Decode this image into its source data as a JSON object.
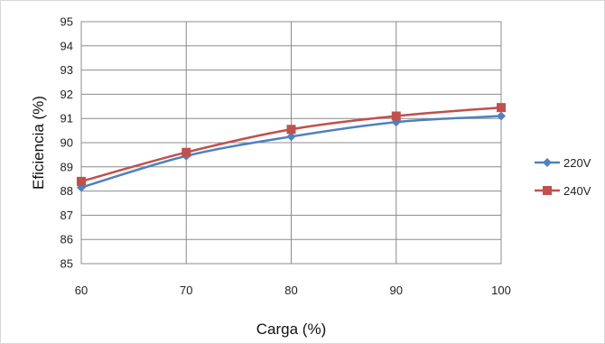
{
  "chart_data": {
    "type": "line",
    "title": "",
    "xlabel": "Carga (%)",
    "ylabel": "Eficiencia (%)",
    "x": [
      60,
      70,
      80,
      90,
      100
    ],
    "xlim": [
      60,
      100
    ],
    "ylim": [
      85,
      95
    ],
    "x_ticks": [
      "60",
      "70",
      "80",
      "90",
      "100"
    ],
    "y_ticks": [
      "85",
      "86",
      "87",
      "88",
      "89",
      "90",
      "91",
      "92",
      "93",
      "94",
      "95"
    ],
    "grid": true,
    "legend_position": "right",
    "series": [
      {
        "name": "220V",
        "marker": "diamond",
        "color": "#4f81bd",
        "values": [
          88.15,
          89.45,
          90.25,
          90.85,
          91.1
        ]
      },
      {
        "name": "240V",
        "marker": "square",
        "color": "#c0504d",
        "values": [
          88.4,
          89.6,
          90.55,
          91.1,
          91.45
        ]
      }
    ]
  }
}
